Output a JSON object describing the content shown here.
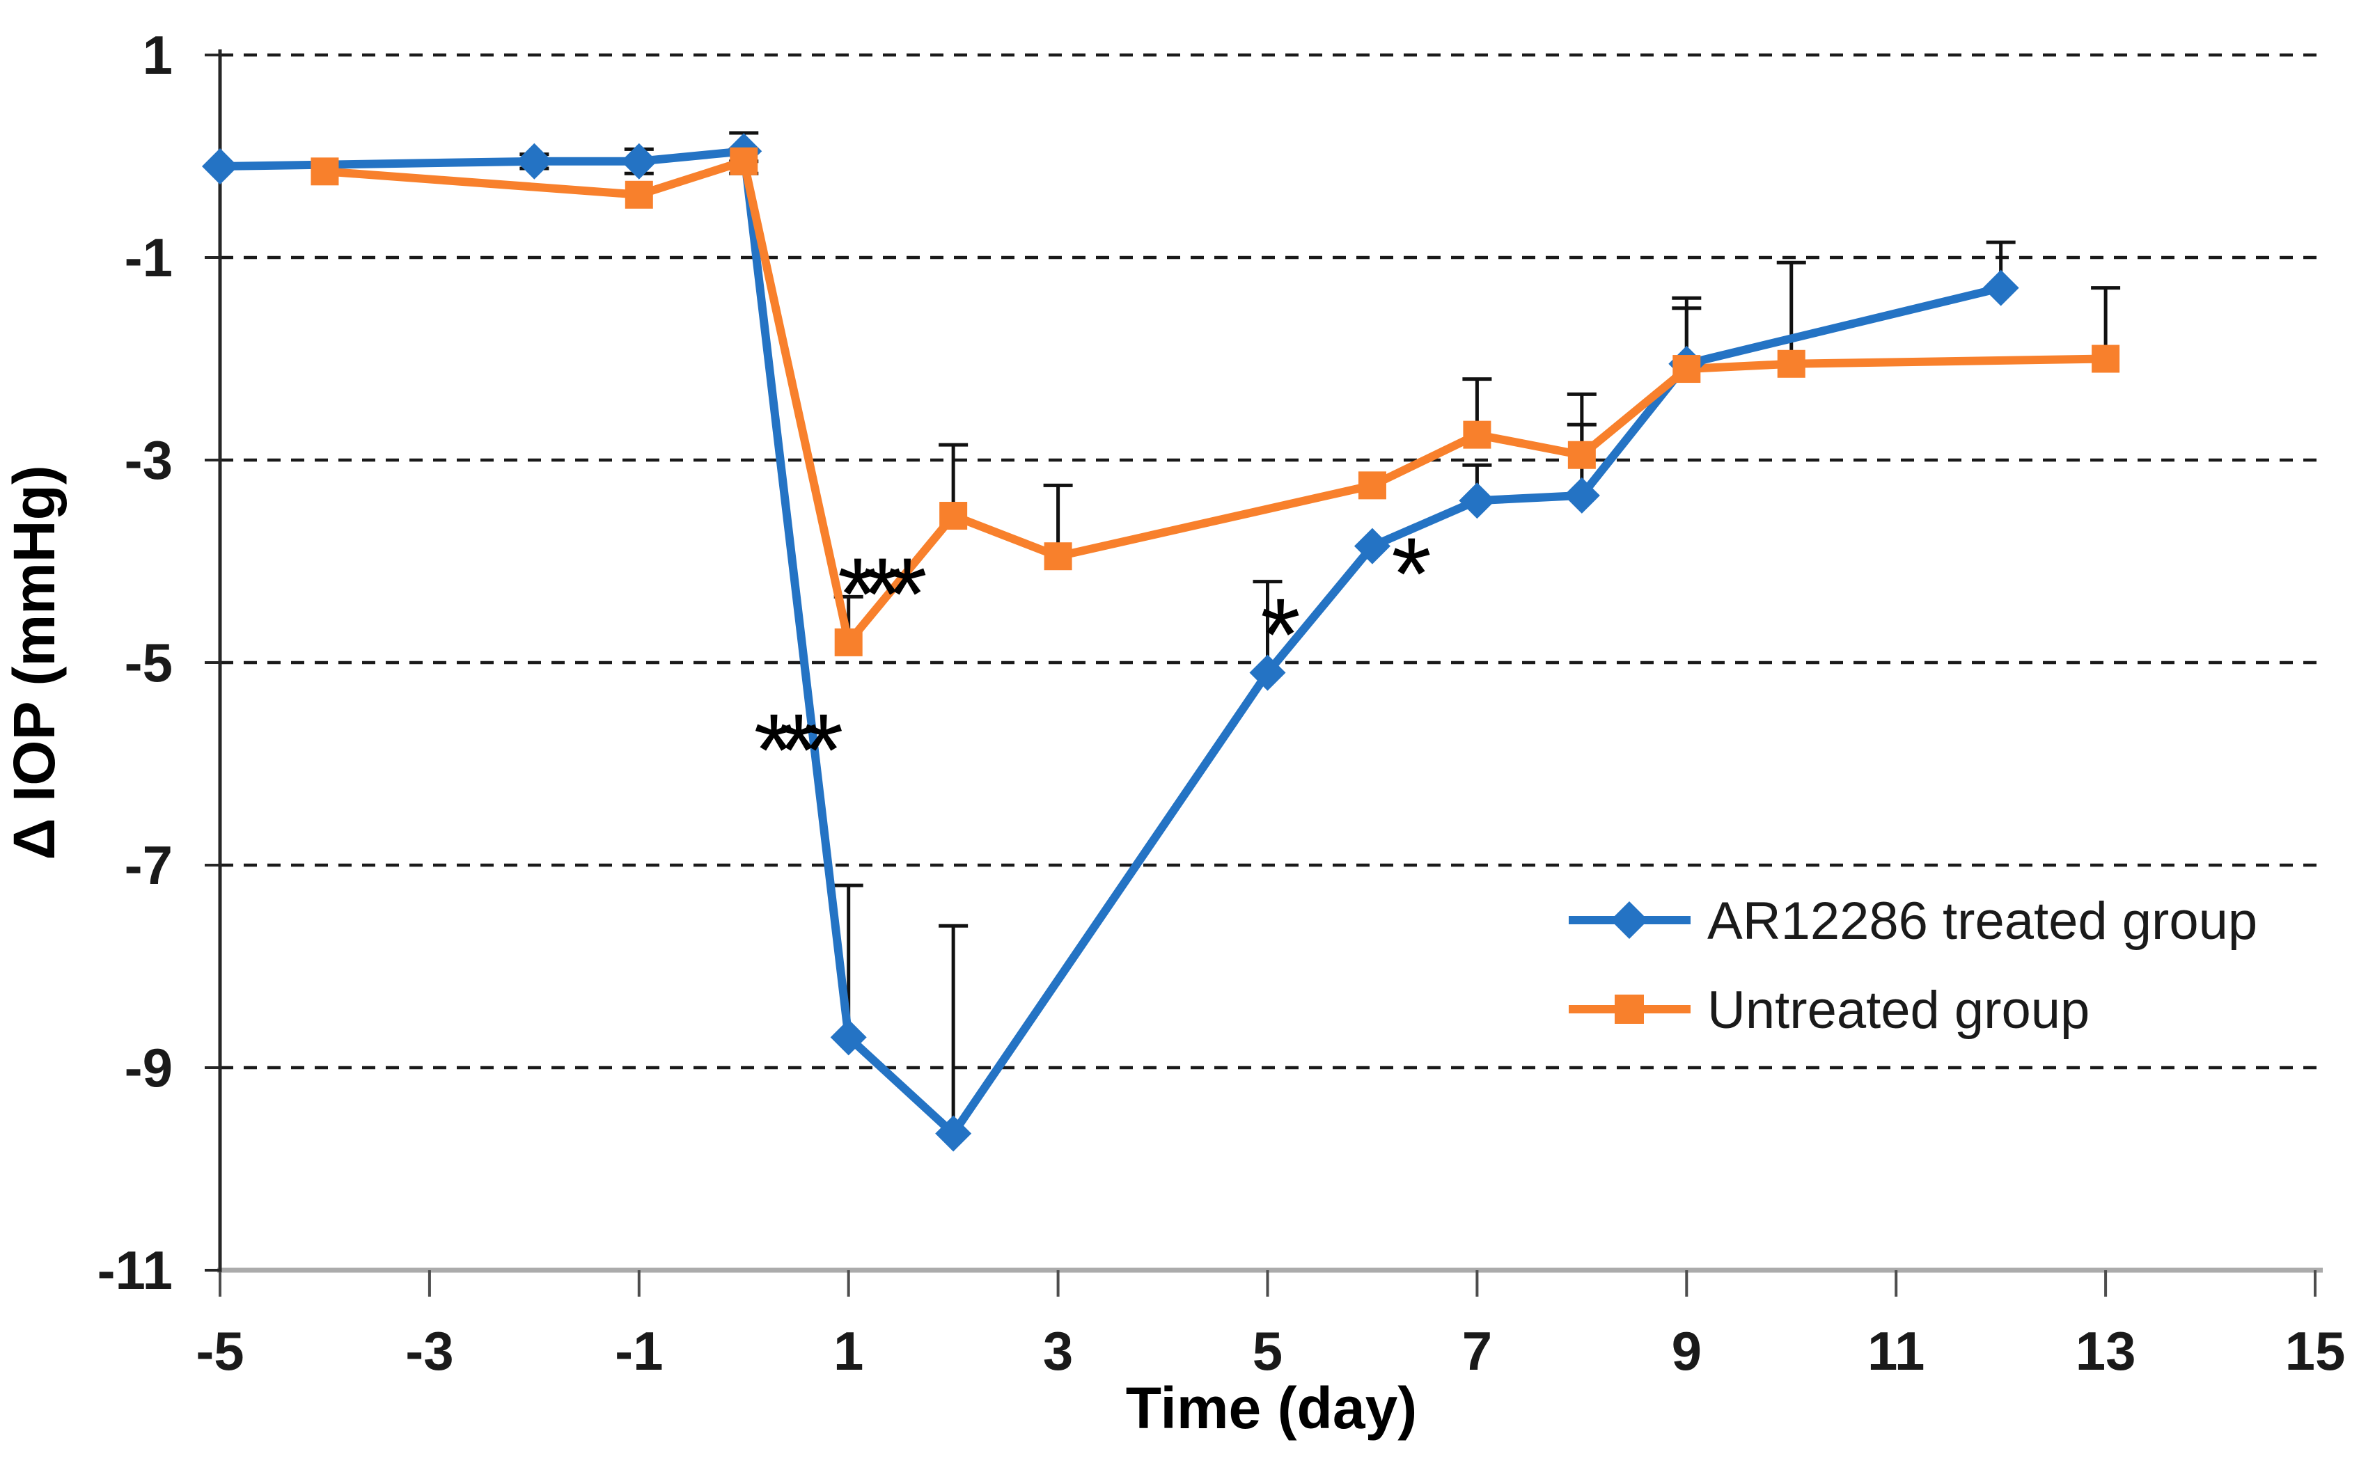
{
  "chart_data": {
    "type": "line",
    "title": "",
    "xlabel": "Time (day)",
    "ylabel": "Δ IOP (mmHg)",
    "xlim": [
      -5,
      15
    ],
    "ylim": [
      -11,
      1
    ],
    "x_ticks": [
      -5,
      -3,
      -1,
      1,
      3,
      5,
      7,
      9,
      11,
      13,
      15
    ],
    "y_ticks": [
      1,
      -1,
      -3,
      -5,
      -7,
      -9,
      -11
    ],
    "grid": "horizontal dashed gridlines at each y tick except -11 (bottom axis)",
    "legend_position": "middle-right",
    "error_bars": "upward whiskers with caps; tiny symmetric whiskers near day 0",
    "series": [
      {
        "name": "AR12286 treated group",
        "color": "#2473C4",
        "marker": "diamond",
        "points": [
          {
            "x": -5,
            "y": -0.1
          },
          {
            "x": -2,
            "y": -0.05,
            "err_up": 0.07,
            "err_down": 0.07
          },
          {
            "x": -1,
            "y": -0.05,
            "err_up": 0.12,
            "err_down": 0.12
          },
          {
            "x": 0,
            "y": 0.05,
            "err_up": 0.18,
            "err_down": 0.1
          },
          {
            "x": 1,
            "y": -8.7,
            "err_up": 1.5
          },
          {
            "x": 2,
            "y": -9.65,
            "err_up": 2.05
          },
          {
            "x": 5,
            "y": -5.1,
            "err_up": 0.9
          },
          {
            "x": 6,
            "y": -3.85
          },
          {
            "x": 7,
            "y": -3.4,
            "err_up": 0.35
          },
          {
            "x": 8,
            "y": -3.35,
            "err_up": 0.7
          },
          {
            "x": 9,
            "y": -2.05,
            "err_up": 0.55
          },
          {
            "x": 12,
            "y": -1.3,
            "err_up": 0.45
          }
        ]
      },
      {
        "name": "Untreated group",
        "color": "#F8802C",
        "marker": "square",
        "points": [
          {
            "x": -4,
            "y": -0.15
          },
          {
            "x": -1,
            "y": -0.38
          },
          {
            "x": 0,
            "y": -0.05,
            "err_up": 0.12,
            "err_down": 0.12
          },
          {
            "x": 1,
            "y": -4.8,
            "err_up": 0.45
          },
          {
            "x": 2,
            "y": -3.55,
            "err_up": 0.7
          },
          {
            "x": 3,
            "y": -3.95,
            "err_up": 0.7
          },
          {
            "x": 6,
            "y": -3.25
          },
          {
            "x": 7,
            "y": -2.75,
            "err_up": 0.55
          },
          {
            "x": 8,
            "y": -2.95,
            "err_up": 0.6
          },
          {
            "x": 9,
            "y": -2.1,
            "err_up": 0.7
          },
          {
            "x": 10,
            "y": -2.05,
            "err_up": 1.0
          },
          {
            "x": 13,
            "y": -2.0,
            "err_up": 0.7
          }
        ]
      }
    ],
    "annotations": [
      {
        "text": "***",
        "x": 1.25,
        "y": -4.22
      },
      {
        "text": "***",
        "x": 0.45,
        "y": -5.76
      },
      {
        "text": "*",
        "x": 5.05,
        "y": -4.62
      },
      {
        "text": "*",
        "x": 6.3,
        "y": -4.02
      }
    ]
  },
  "colors": {
    "background": "#ffffff",
    "series_blue": "#2473C4",
    "series_orange": "#F8802C",
    "gridline": "#1a1a1a",
    "y_axis_line": "#262626",
    "x_axis_line": "#ababab",
    "axis_tick": "#4d4d4d",
    "error_bar": "#111111",
    "text": "#1a1a1a"
  }
}
